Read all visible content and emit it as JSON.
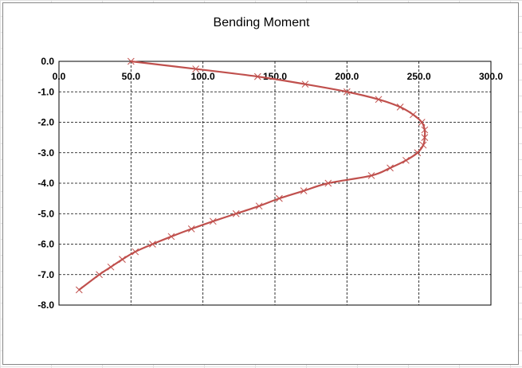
{
  "chart_data": {
    "type": "line",
    "title": "Bending Moment",
    "xlabel": "",
    "ylabel": "",
    "xlim": [
      0,
      300
    ],
    "ylim": [
      -8,
      0
    ],
    "x_ticks": [
      0,
      50,
      100,
      150,
      200,
      250,
      300
    ],
    "x_tick_labels": [
      "0.0",
      "50.0",
      "100.0",
      "150.0",
      "200.0",
      "250.0",
      "300.0"
    ],
    "y_ticks": [
      0,
      -1,
      -2,
      -3,
      -4,
      -5,
      -6,
      -7,
      -8
    ],
    "y_tick_labels": [
      "0.0",
      "-1.0",
      "-2.0",
      "-3.0",
      "-4.0",
      "-5.0",
      "-6.0",
      "-7.0",
      "-8.0"
    ],
    "x_axis_position": "top",
    "grid": true,
    "grid_style": "dashed",
    "legend": "none",
    "marker": "x",
    "series": [
      {
        "color": "#c0504d",
        "x": [
          50,
          95,
          138,
          171,
          200,
          222,
          237,
          246,
          252,
          254,
          254,
          253,
          249,
          241,
          230,
          217,
          187,
          170,
          153,
          139,
          123,
          107,
          92,
          78,
          65,
          53,
          44,
          36,
          28,
          14
        ],
        "y": [
          0,
          -0.25,
          -0.5,
          -0.75,
          -1.0,
          -1.25,
          -1.5,
          -1.75,
          -2.0,
          -2.25,
          -2.5,
          -2.75,
          -3.0,
          -3.25,
          -3.5,
          -3.75,
          -4.0,
          -4.25,
          -4.5,
          -4.75,
          -5.0,
          -5.25,
          -5.5,
          -5.75,
          -6.0,
          -6.25,
          -6.5,
          -6.75,
          -7.0,
          -7.5
        ]
      }
    ]
  }
}
